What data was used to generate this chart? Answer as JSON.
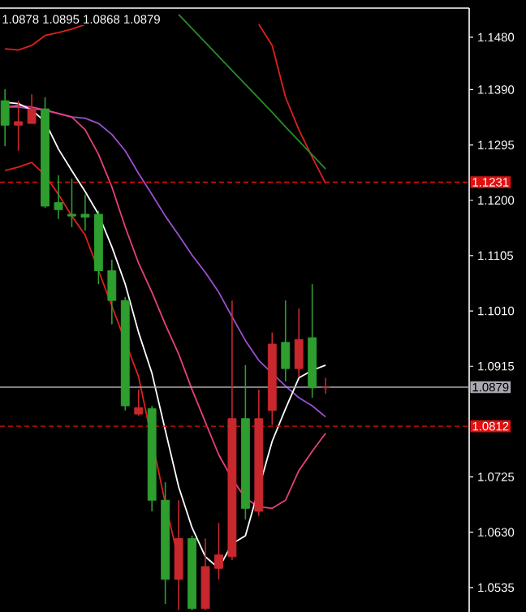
{
  "chart_data": {
    "type": "candlestick",
    "categories": [
      null,
      null,
      null,
      null,
      null,
      null,
      null,
      null,
      null,
      null,
      null,
      null,
      null,
      null,
      null,
      null,
      null,
      null,
      null,
      null,
      null,
      null,
      null,
      null,
      null
    ],
    "ohlc": [
      [
        1.1371,
        1.1391,
        1.1293,
        1.1329
      ],
      [
        1.1329,
        1.1371,
        1.1285,
        1.1335
      ],
      [
        1.1332,
        1.1382,
        1.1332,
        1.1357
      ],
      [
        1.1357,
        1.1377,
        1.1187,
        1.119
      ],
      [
        1.1196,
        1.1243,
        1.1168,
        1.1184
      ],
      [
        1.1176,
        1.1237,
        1.1154,
        1.1173
      ],
      [
        1.1176,
        1.121,
        1.1148,
        1.1171
      ],
      [
        1.1176,
        1.1182,
        1.1056,
        1.1079
      ],
      [
        1.1079,
        1.1098,
        1.0987,
        1.1028
      ],
      [
        1.1028,
        1.1034,
        1.0839,
        1.0847
      ],
      [
        1.0833,
        1.0875,
        1.083,
        1.0844
      ],
      [
        1.0842,
        1.0847,
        1.0666,
        1.0685
      ],
      [
        1.0685,
        1.0716,
        1.0507,
        1.0549
      ],
      [
        1.0549,
        1.0685,
        1.0496,
        1.0619
      ],
      [
        1.0619,
        1.0624,
        1.0496,
        1.0499
      ],
      [
        1.0499,
        1.0619,
        1.0496,
        1.0571
      ],
      [
        1.0568,
        1.0646,
        1.0549,
        1.0591
      ],
      [
        1.0588,
        1.1028,
        1.0582,
        1.0825
      ],
      [
        1.0825,
        1.0917,
        1.0652,
        1.0671
      ],
      [
        1.0666,
        1.0875,
        1.0658,
        1.0825
      ],
      [
        1.0839,
        1.0973,
        1.0814,
        1.0953
      ],
      [
        1.0956,
        1.1028,
        1.0889,
        1.0911
      ],
      [
        1.0911,
        1.1014,
        1.0897,
        1.0961
      ],
      [
        1.0964,
        1.1056,
        1.0861,
        1.0878
      ],
      [
        1.0878,
        1.0895,
        1.0868,
        1.0879
      ]
    ],
    "colors": [
      "#2e9e2e",
      "#c8282d",
      "#c8282d",
      "#2e9e2e",
      "#2e9e2e",
      "#2e9e2e",
      "#2e9e2e",
      "#2e9e2e",
      "#2e9e2e",
      "#2e9e2e",
      "#c8282d",
      "#2e9e2e",
      "#2e9e2e",
      "#c8282d",
      "#2e9e2e",
      "#c8282d",
      "#c8282d",
      "#c8282d",
      "#2e9e2e",
      "#c8282d",
      "#c8282d",
      "#2e9e2e",
      "#c8282d",
      "#2e9e2e",
      "#c8282d"
    ],
    "series": [
      {
        "type": "line",
        "color": "#e0201c",
        "values": [
          1.1251,
          1.1257,
          1.1265,
          1.1243,
          1.121,
          1.1173,
          1.114,
          null,
          null,
          null,
          1.0897,
          null,
          1.068,
          1.0582,
          null,
          null,
          null,
          null,
          null,
          null,
          null,
          null,
          null,
          null,
          null
        ]
      },
      {
        "type": "line",
        "color": "#e0201c",
        "values": [
          1.146,
          1.1458,
          1.1466,
          1.1483,
          1.1488,
          1.1494,
          1.1502,
          null,
          null,
          null,
          null,
          null,
          null,
          null,
          null,
          null,
          null,
          null,
          null,
          null,
          null,
          null,
          null,
          null,
          null
        ]
      },
      {
        "type": "line",
        "color": "#e0201c",
        "values": [
          null,
          null,
          null,
          null,
          null,
          null,
          null,
          null,
          null,
          null,
          null,
          null,
          null,
          null,
          null,
          null,
          null,
          null,
          null,
          1.1502,
          1.1466,
          1.1377,
          1.1321,
          1.1274,
          1.1229
        ]
      },
      {
        "type": "line",
        "color": "#2a8a2a",
        "values": [
          null,
          null,
          null,
          null,
          null,
          null,
          null,
          null,
          null,
          null,
          null,
          null,
          null,
          1.1519,
          1.1495,
          1.1471,
          1.1447,
          1.1423,
          1.1399,
          1.1375,
          1.1351,
          1.1326,
          1.1302,
          1.1278,
          1.1254
        ]
      },
      {
        "type": "line",
        "color": "#9a4fd0",
        "values": [
          1.136,
          1.136,
          1.1357,
          1.1355,
          1.1349,
          1.1343,
          1.1341,
          1.1332,
          1.1313,
          1.1285,
          1.1246,
          1.121,
          1.1173,
          1.114,
          1.1106,
          1.1076,
          1.1042,
          1.1,
          1.0959,
          1.0925,
          1.0903,
          1.0881,
          1.0861,
          1.0847,
          1.0828
        ]
      },
      {
        "type": "line",
        "color": "#e8407a",
        "values": [
          1.136,
          1.1363,
          1.136,
          1.1355,
          1.1349,
          1.1343,
          1.1321,
          1.1279,
          1.1223,
          1.1154,
          1.1092,
          1.1042,
          1.0987,
          1.0936,
          1.0875,
          1.0819,
          1.0763,
          1.0722,
          1.0688,
          1.0674,
          1.0671,
          1.0685,
          1.0736,
          1.0769,
          1.08
        ]
      },
      {
        "type": "line",
        "color": "#ffffff",
        "values": [
          1.1368,
          1.1366,
          1.1355,
          1.1335,
          1.1288,
          1.1251,
          1.1215,
          1.1176,
          1.112,
          1.1056,
          1.0973,
          1.0903,
          1.0805,
          1.0708,
          1.0638,
          1.0588,
          1.0568,
          1.061,
          1.0624,
          null,
          1.0786,
          1.0842,
          1.0895,
          1.0908,
          1.0917
        ]
      }
    ],
    "ylim": [
      1.0493,
      1.153
    ],
    "yticks": [
      {
        "value": 1.148,
        "label": "1.1480"
      },
      {
        "value": 1.139,
        "label": "1.1390"
      },
      {
        "value": 1.1295,
        "label": "1.1295"
      },
      {
        "value": 1.12,
        "label": "1.1200"
      },
      {
        "value": 1.1105,
        "label": "1.1105"
      },
      {
        "value": 1.101,
        "label": "1.1010"
      },
      {
        "value": 1.0915,
        "label": "1.0915"
      },
      {
        "value": 1.0725,
        "label": "1.0725"
      },
      {
        "value": 1.063,
        "label": "1.0630"
      },
      {
        "value": 1.0535,
        "label": "1.0535"
      }
    ],
    "ref_lines": [
      {
        "axis": "y",
        "value": 1.1231,
        "label": "1.1231",
        "color": "#e01010",
        "line_style": "dashed"
      },
      {
        "axis": "y",
        "value": 1.0812,
        "label": "1.0812",
        "color": "#e01010",
        "line_style": "dashed"
      },
      {
        "axis": "y",
        "value": 1.0879,
        "label": "1.0879",
        "color": "#a8a8b0",
        "line_style": "solid"
      }
    ],
    "annotations": [
      "1.0878 1.0895 1.0868 1.0879"
    ],
    "tick_labels": "y",
    "marker": "none"
  }
}
